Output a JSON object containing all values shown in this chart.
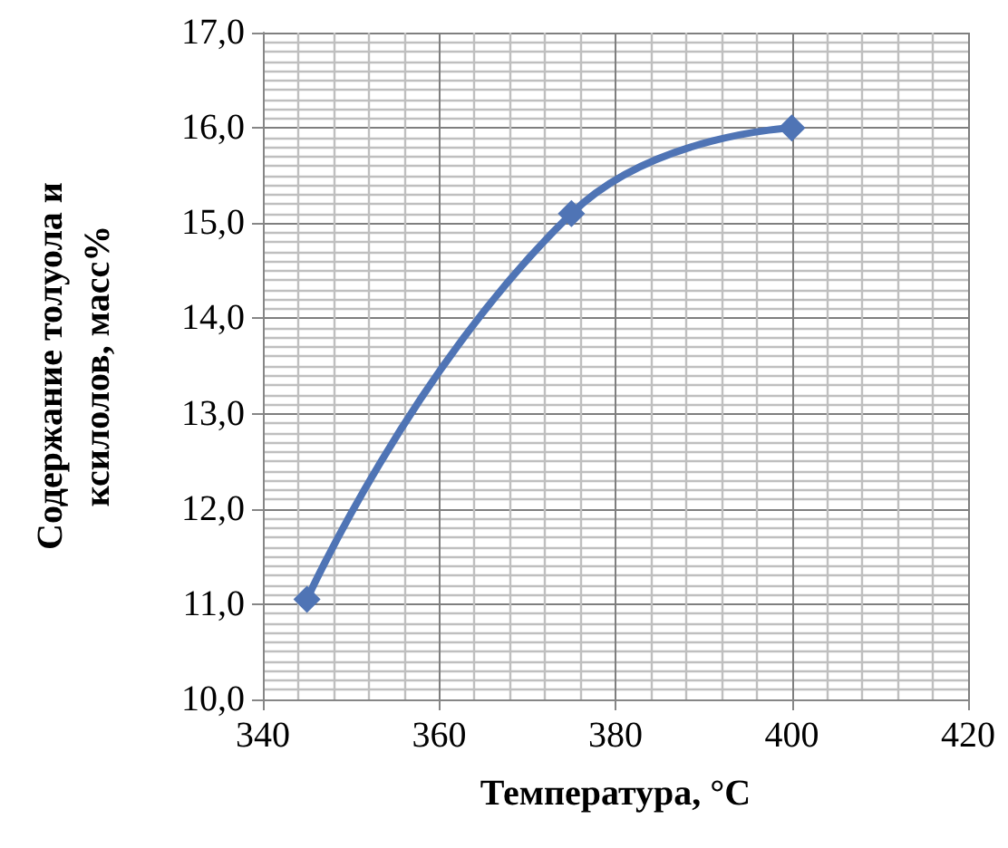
{
  "chart_data": {
    "type": "line",
    "xlabel": "Температура, °C",
    "ylabel": "Содержание толуола и\nксилолов, масс%",
    "x": [
      345,
      375,
      400
    ],
    "series": [
      {
        "color": "#4f74b5",
        "values": [
          11.05,
          15.1,
          16.0
        ]
      }
    ],
    "xlim": [
      340,
      420
    ],
    "xticks": [
      340,
      360,
      380,
      400,
      420
    ],
    "ylim": [
      10,
      17
    ],
    "yticks": [
      {
        "value": 10,
        "label": "10,0"
      },
      {
        "value": 11,
        "label": "11,0"
      },
      {
        "value": 12,
        "label": "12,0"
      },
      {
        "value": 13,
        "label": "13,0"
      },
      {
        "value": 14,
        "label": "14,0"
      },
      {
        "value": 15,
        "label": "15,0"
      },
      {
        "value": 16,
        "label": "16,0"
      },
      {
        "value": 17,
        "label": "17,0"
      }
    ],
    "grid": true,
    "marker": "diamond",
    "line_style": "solid"
  }
}
